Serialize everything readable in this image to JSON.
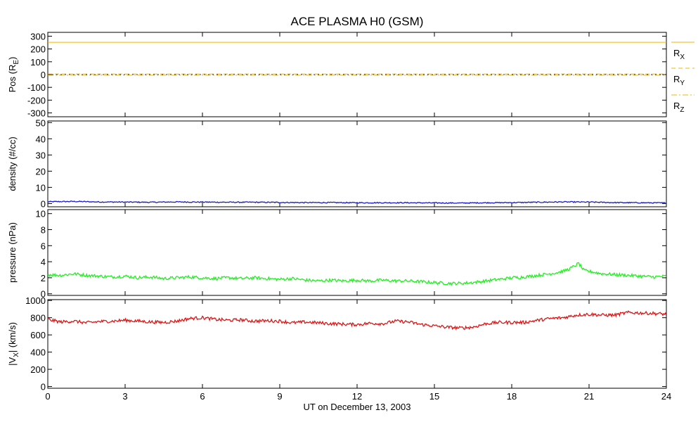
{
  "chart_data": {
    "type": "line",
    "title": "ACE PLASMA H0 (GSM)",
    "xlabel": "UT on December 13, 2003",
    "xlim": [
      0,
      24
    ],
    "xticks": [
      0,
      3,
      6,
      9,
      12,
      15,
      18,
      21,
      24
    ],
    "panels": [
      {
        "ylabel_parts": {
          "main": "Pos (R",
          "sub": "E",
          "close": ")"
        },
        "ylim": [
          -330,
          330
        ],
        "yticks": [
          -300,
          -200,
          -100,
          0,
          100,
          200,
          300
        ],
        "legend_placement": "right",
        "series": [
          {
            "name_main": "R",
            "name_sub": "X",
            "color": "#f5b400",
            "dash": "solid",
            "x": [
              0,
              24
            ],
            "y": [
              252,
              252
            ]
          },
          {
            "name_main": "R",
            "name_sub": "Y",
            "color": "#f5b400",
            "dash": "dashed",
            "x": [
              0,
              24
            ],
            "y": [
              4,
              4
            ]
          },
          {
            "name_main": "R",
            "name_sub": "Z",
            "color": "#f5b400",
            "dash": "dashdot",
            "x": [
              0,
              24
            ],
            "y": [
              -5,
              -5
            ]
          }
        ]
      },
      {
        "ylabel": "density (#/cc)",
        "ylim": [
          -2,
          51
        ],
        "yticks": [
          0,
          10,
          20,
          30,
          40,
          50
        ],
        "series": [
          {
            "color": "#1a1acc",
            "x": [
              0,
              1,
              2,
              3,
              4,
              5,
              6,
              7,
              8,
              9,
              10,
              11,
              12,
              13,
              14,
              15,
              16,
              17,
              18,
              19,
              20,
              21,
              22,
              23,
              24
            ],
            "y": [
              1.1,
              1.3,
              1.0,
              0.9,
              0.8,
              1.0,
              0.9,
              0.8,
              0.8,
              0.7,
              0.6,
              0.6,
              0.5,
              0.5,
              0.5,
              0.4,
              0.3,
              0.5,
              0.6,
              0.8,
              1.0,
              0.9,
              0.6,
              0.5,
              0.4
            ]
          }
        ]
      },
      {
        "ylabel": "pressure (nPa)",
        "ylim": [
          -0.2,
          10.5
        ],
        "yticks": [
          0,
          2,
          4,
          6,
          8,
          10
        ],
        "series": [
          {
            "color": "#22ee22",
            "x": [
              0,
              0.5,
              1,
              1.5,
              2,
              2.5,
              3,
              3.5,
              4,
              4.5,
              5,
              5.5,
              6,
              6.5,
              7,
              7.5,
              8,
              8.5,
              9,
              9.5,
              10,
              10.5,
              11,
              11.5,
              12,
              12.5,
              13,
              13.5,
              14,
              14.5,
              15,
              15.5,
              16,
              16.5,
              17,
              17.5,
              18,
              18.5,
              19,
              19.5,
              20,
              20.3,
              20.6,
              20.8,
              21,
              21.5,
              22,
              22.5,
              23,
              23.5,
              24
            ],
            "y": [
              2.4,
              2.3,
              2.5,
              2.3,
              2.2,
              2.1,
              2.2,
              2.0,
              2.1,
              1.9,
              2.0,
              2.1,
              2.0,
              1.9,
              2.0,
              1.9,
              2.0,
              1.9,
              1.8,
              1.9,
              1.7,
              1.6,
              1.7,
              1.6,
              1.7,
              1.6,
              1.7,
              1.6,
              1.6,
              1.5,
              1.4,
              1.3,
              1.3,
              1.4,
              1.6,
              1.8,
              2.0,
              2.1,
              2.3,
              2.5,
              2.8,
              3.2,
              3.8,
              2.9,
              2.8,
              2.5,
              2.4,
              2.3,
              2.2,
              2.1,
              2.2
            ]
          }
        ]
      },
      {
        "ylabel_parts": {
          "main": "|V",
          "sub": "X",
          "close": "| (km/s)"
        },
        "ylim": [
          -20,
          1010
        ],
        "yticks": [
          0,
          200,
          400,
          600,
          800,
          1000
        ],
        "series": [
          {
            "color": "#e01414",
            "x": [
              0,
              0.5,
              1,
              1.5,
              2,
              2.5,
              3,
              3.5,
              4,
              4.5,
              5,
              5.5,
              6,
              6.5,
              7,
              7.5,
              8,
              8.5,
              9,
              9.5,
              10,
              10.5,
              11,
              11.5,
              12,
              12.5,
              13,
              13.5,
              14,
              14.5,
              15,
              15.5,
              16,
              16.5,
              17,
              17.5,
              18,
              18.5,
              19,
              19.5,
              20,
              20.5,
              21,
              21.5,
              22,
              22.5,
              23,
              23.5,
              24
            ],
            "y": [
              780,
              750,
              760,
              740,
              755,
              760,
              770,
              760,
              750,
              745,
              760,
              790,
              800,
              780,
              770,
              775,
              760,
              765,
              760,
              740,
              750,
              740,
              730,
              725,
              720,
              735,
              730,
              760,
              750,
              720,
              705,
              690,
              680,
              690,
              730,
              745,
              745,
              745,
              770,
              790,
              800,
              830,
              840,
              830,
              830,
              860,
              855,
              850,
              840
            ]
          }
        ]
      }
    ]
  }
}
